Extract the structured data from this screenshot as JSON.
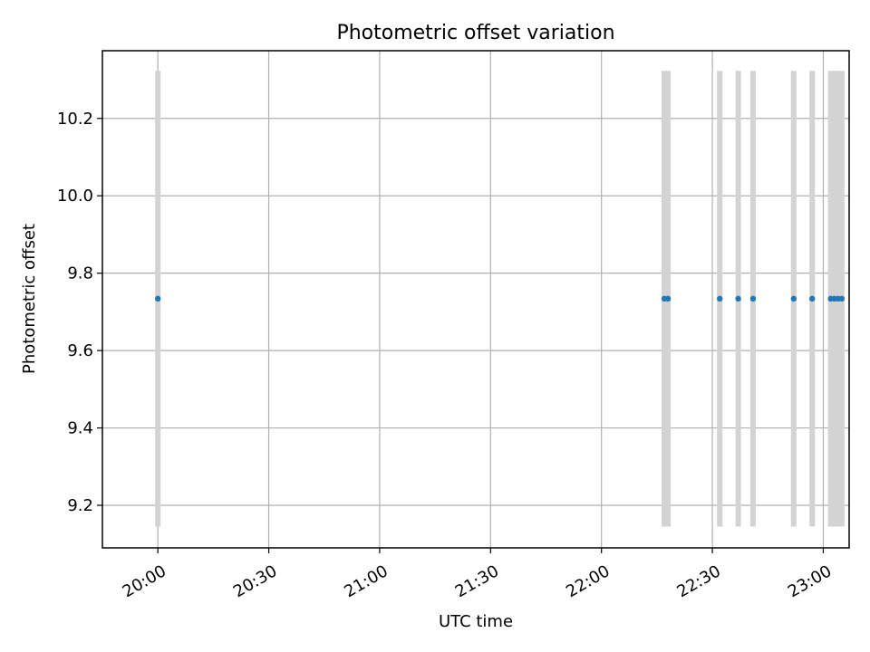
{
  "chart_data": {
    "type": "scatter",
    "title": "Photometric offset variation",
    "xlabel": "UTC time",
    "ylabel": "Photometric offset",
    "x_axis": {
      "type": "time",
      "range": [
        "19:45",
        "23:07"
      ],
      "ticks": [
        "20:00",
        "20:30",
        "21:00",
        "21:30",
        "22:00",
        "22:30",
        "23:00"
      ]
    },
    "y_axis": {
      "range": [
        9.09,
        10.375
      ],
      "ticks": [
        9.2,
        9.4,
        9.6,
        9.8,
        10.0,
        10.2
      ],
      "tick_labels": [
        "9.2",
        "9.4",
        "9.6",
        "9.8",
        "10.0",
        "10.2"
      ]
    },
    "grid": true,
    "points": [
      {
        "x": "20:00",
        "y": 9.734,
        "err_low": 9.145,
        "err_high": 10.323
      },
      {
        "x": "22:17",
        "y": 9.734,
        "err_low": 9.145,
        "err_high": 10.323
      },
      {
        "x": "22:18",
        "y": 9.734,
        "err_low": 9.145,
        "err_high": 10.323
      },
      {
        "x": "22:32",
        "y": 9.734,
        "err_low": 9.145,
        "err_high": 10.323
      },
      {
        "x": "22:37",
        "y": 9.734,
        "err_low": 9.145,
        "err_high": 10.323
      },
      {
        "x": "22:41",
        "y": 9.734,
        "err_low": 9.145,
        "err_high": 10.323
      },
      {
        "x": "22:52",
        "y": 9.734,
        "err_low": 9.145,
        "err_high": 10.323
      },
      {
        "x": "22:57",
        "y": 9.734,
        "err_low": 9.145,
        "err_high": 10.323
      },
      {
        "x": "23:02",
        "y": 9.734,
        "err_low": 9.145,
        "err_high": 10.323
      },
      {
        "x": "23:03",
        "y": 9.734,
        "err_low": 9.145,
        "err_high": 10.323
      },
      {
        "x": "23:04",
        "y": 9.734,
        "err_low": 9.145,
        "err_high": 10.323
      },
      {
        "x": "23:05",
        "y": 9.734,
        "err_low": 9.145,
        "err_high": 10.323
      }
    ],
    "colors": {
      "point": "#1f77b4",
      "errorbar": "#d3d3d3",
      "grid": "#b0b0b0",
      "axis": "#000000"
    }
  }
}
